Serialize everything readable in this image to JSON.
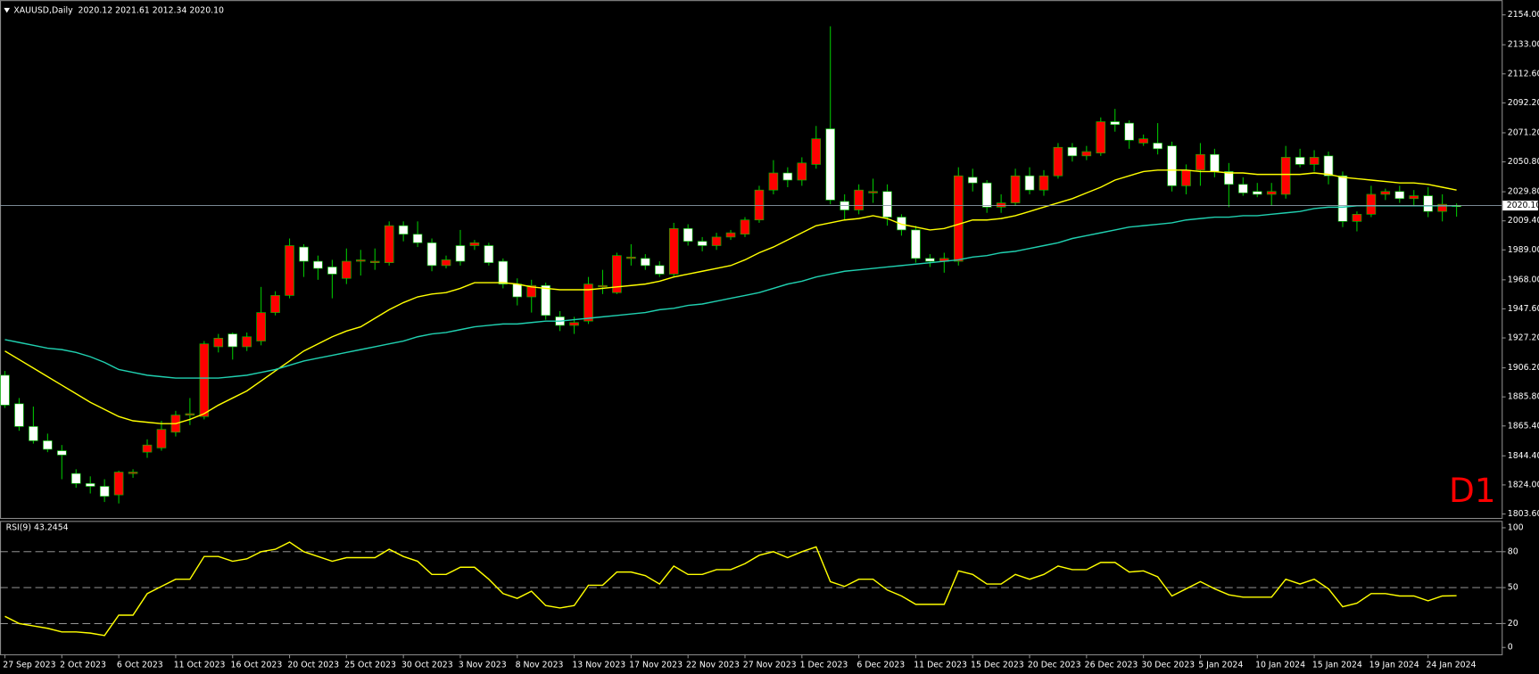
{
  "chart_data": [
    {
      "type": "candlestick",
      "title": "XAUUSD,Daily  2020.12 2021.61 2012.34 2020.10",
      "corner_label": "D1",
      "categories": [
        "27 Sep 2023",
        null,
        null,
        null,
        "2 Oct 2023",
        null,
        null,
        null,
        "6 Oct 2023",
        null,
        null,
        null,
        "11 Oct 2023",
        null,
        null,
        null,
        "16 Oct 2023",
        null,
        null,
        null,
        "20 Oct 2023",
        null,
        null,
        null,
        "25 Oct 2023",
        null,
        null,
        null,
        "30 Oct 2023",
        null,
        null,
        null,
        "3 Nov 2023",
        null,
        null,
        null,
        "8 Nov 2023",
        null,
        null,
        null,
        "13 Nov 2023",
        null,
        null,
        null,
        "17 Nov 2023",
        null,
        null,
        null,
        "22 Nov 2023",
        null,
        null,
        null,
        "27 Nov 2023",
        null,
        null,
        null,
        "1 Dec 2023",
        null,
        null,
        null,
        "6 Dec 2023",
        null,
        null,
        null,
        "11 Dec 2023",
        null,
        null,
        null,
        "15 Dec 2023",
        null,
        null,
        null,
        "20 Dec 2023",
        null,
        null,
        null,
        "26 Dec 2023",
        null,
        null,
        null,
        "30 Dec 2023",
        null,
        null,
        null,
        "5 Jan 2024",
        null,
        null,
        null,
        "10 Jan 2024",
        null,
        null,
        null,
        "15 Jan 2024",
        null,
        null,
        null,
        "19 Jan 2024",
        null,
        null,
        null,
        "24 Jan 2024",
        null,
        null
      ],
      "open": [
        1901,
        1881,
        1865,
        1855,
        1848,
        1832,
        1825,
        1823,
        1817,
        1832,
        1847,
        1850,
        1861,
        1873,
        1872,
        1921,
        1930,
        1921,
        1925,
        1945,
        1957,
        1991,
        1981,
        1977,
        1969,
        1981,
        1980,
        1980,
        2006,
        2000,
        1994,
        1978,
        1992,
        1992,
        1992,
        1981,
        1965,
        1956,
        1964,
        1942,
        1936,
        1939,
        1963,
        1959,
        1983,
        1983,
        1978,
        1972,
        2004,
        1995,
        1992,
        1998,
        2000,
        2010,
        2031,
        2043,
        2038,
        2049,
        2074,
        2023,
        2017,
        2029,
        2030,
        2012,
        2003,
        1983,
        1981,
        1981,
        2040,
        2036,
        2019,
        2022,
        2041,
        2031,
        2041,
        2061,
        2055,
        2057,
        2079,
        2078,
        2064,
        2064,
        2062,
        2034,
        2045,
        2056,
        2044,
        2035,
        2030,
        2028,
        2028,
        2054,
        2049,
        2055,
        2041,
        2009,
        2014,
        2028,
        2030,
        2025,
        2027,
        2016,
        2020.12
      ],
      "high": [
        1904,
        1885,
        1879,
        1860,
        1852,
        1835,
        1830,
        1828,
        1834,
        1835,
        1856,
        1869,
        1876,
        1885,
        1925,
        1930,
        1931,
        1931,
        1963,
        1960,
        1997,
        1993,
        1985,
        1982,
        1990,
        1989,
        1990,
        2009,
        2009,
        2009,
        1997,
        1985,
        2003,
        1996,
        1994,
        1983,
        1969,
        1968,
        1966,
        1946,
        1942,
        1970,
        1975,
        1987,
        1993,
        1986,
        1981,
        2008,
        2007,
        1998,
        2001,
        2003,
        2012,
        2034,
        2052,
        2047,
        2054,
        2076,
        2146,
        2028,
        2035,
        2039,
        2035,
        2014,
        2006,
        1986,
        1987,
        2047,
        2046,
        2038,
        2028,
        2046,
        2047,
        2045,
        2064,
        2064,
        2062,
        2082,
        2088,
        2080,
        2070,
        2078,
        2065,
        2049,
        2064,
        2060,
        2050,
        2040,
        2036,
        2036,
        2062,
        2060,
        2059,
        2058,
        2044,
        2016,
        2034,
        2032,
        2034,
        2031,
        2033,
        2028,
        2021.61
      ],
      "low": [
        1878,
        1862,
        1853,
        1847,
        1828,
        1822,
        1818,
        1812,
        1811,
        1829,
        1843,
        1848,
        1858,
        1866,
        1870,
        1917,
        1912,
        1918,
        1922,
        1943,
        1955,
        1970,
        1968,
        1955,
        1965,
        1971,
        1975,
        1978,
        1995,
        1991,
        1974,
        1976,
        1978,
        1989,
        1978,
        1962,
        1950,
        1945,
        1940,
        1932,
        1930,
        1937,
        1958,
        1958,
        1978,
        1975,
        1970,
        1970,
        1992,
        1988,
        1989,
        1996,
        1998,
        2008,
        2028,
        2033,
        2034,
        2046,
        2021,
        2010,
        2014,
        2022,
        2006,
        1999,
        1980,
        1977,
        1973,
        1978,
        2030,
        2015,
        2015,
        2020,
        2028,
        2027,
        2039,
        2051,
        2052,
        2055,
        2072,
        2060,
        2062,
        2056,
        2030,
        2028,
        2034,
        2040,
        2019,
        2027,
        2026,
        2020,
        2025,
        2047,
        2044,
        2035,
        2005,
        2002,
        2012,
        2024,
        2022,
        2020,
        2012,
        2009,
        2012.34
      ],
      "close": [
        1880,
        1865,
        1855,
        1849,
        1845,
        1825,
        1823,
        1816,
        1833,
        1833,
        1852,
        1863,
        1873,
        1874,
        1923,
        1927,
        1921,
        1928,
        1945,
        1957,
        1992,
        1981,
        1976,
        1972,
        1981,
        1982,
        1981,
        2006,
        2000,
        1994,
        1978,
        1982,
        1981,
        1994,
        1980,
        1965,
        1956,
        1964,
        1943,
        1936,
        1938,
        1965,
        1964,
        1985,
        1984,
        1978,
        1972,
        2004,
        1995,
        1992,
        1998,
        2001,
        2010,
        2031,
        2043,
        2038,
        2050,
        2067,
        2024,
        2017,
        2031,
        2030,
        2012,
        2003,
        1983,
        1981,
        1983,
        2041,
        2036,
        2019,
        2022,
        2041,
        2031,
        2041,
        2061,
        2055,
        2058,
        2079,
        2077,
        2066,
        2067,
        2060,
        2034,
        2045,
        2056,
        2044,
        2035,
        2029,
        2028,
        2030,
        2054,
        2049,
        2054,
        2041,
        2009,
        2014,
        2028,
        2030,
        2025,
        2027,
        2016,
        2021,
        2020.1
      ],
      "up_color": "#ff0000",
      "down_color": "#ffffff",
      "wick_color": "#00c000",
      "overlays": [
        {
          "color": "#ffff00",
          "values": [
            1918,
            1912,
            1906,
            1900,
            1894,
            1888,
            1882,
            1877,
            1872,
            1869,
            1868,
            1867,
            1867,
            1870,
            1874,
            1880,
            1885,
            1890,
            1897,
            1904,
            1911,
            1918,
            1923,
            1928,
            1932,
            1935,
            1941,
            1947,
            1952,
            1956,
            1958,
            1959,
            1962,
            1966,
            1966,
            1966,
            1965,
            1963,
            1962,
            1961,
            1961,
            1961,
            1962,
            1963,
            1964,
            1965,
            1967,
            1970,
            1972,
            1974,
            1976,
            1978,
            1982,
            1987,
            1991,
            1996,
            2001,
            2006,
            2008,
            2010,
            2011,
            2013,
            2011,
            2007,
            2005,
            2003,
            2004,
            2007,
            2010,
            2010,
            2011,
            2013,
            2016,
            2019,
            2022,
            2025,
            2029,
            2033,
            2038,
            2041,
            2044,
            2045,
            2045,
            2045,
            2044,
            2044,
            2043,
            2043,
            2042,
            2042,
            2042,
            2042,
            2043,
            2042,
            2040,
            2039,
            2038,
            2037,
            2036,
            2036,
            2035,
            2033,
            2031
          ]
        },
        {
          "color": "#20d0b0",
          "values": [
            1926,
            1924,
            1922,
            1920,
            1919,
            1917,
            1914,
            1910,
            1905,
            1903,
            1901,
            1900,
            1899,
            1899,
            1899,
            1899,
            1900,
            1901,
            1903,
            1905,
            1908,
            1911,
            1913,
            1915,
            1917,
            1919,
            1921,
            1923,
            1925,
            1928,
            1930,
            1931,
            1933,
            1935,
            1936,
            1937,
            1937,
            1938,
            1939,
            1939,
            1940,
            1941,
            1942,
            1943,
            1944,
            1945,
            1947,
            1948,
            1950,
            1951,
            1953,
            1955,
            1957,
            1959,
            1962,
            1965,
            1967,
            1970,
            1972,
            1974,
            1975,
            1976,
            1977,
            1978,
            1979,
            1980,
            1981,
            1982,
            1984,
            1985,
            1987,
            1988,
            1990,
            1992,
            1994,
            1997,
            1999,
            2001,
            2003,
            2005,
            2006,
            2007,
            2008,
            2010,
            2011,
            2012,
            2012,
            2013,
            2013,
            2014,
            2015,
            2016,
            2018,
            2019,
            2019,
            2020,
            2020,
            2020,
            2020,
            2020,
            2020,
            2020,
            2020
          ]
        }
      ],
      "current_price": {
        "value": 2020.1,
        "label": "2020.10"
      },
      "ylim": [
        1800.8,
        2162.3
      ],
      "yticks": [
        {
          "value": 2154.0,
          "label": "2154.00"
        },
        {
          "value": 2133.0,
          "label": "2133.00"
        },
        {
          "value": 2112.6,
          "label": "2112.60"
        },
        {
          "value": 2092.2,
          "label": "2092.20"
        },
        {
          "value": 2071.2,
          "label": "2071.20"
        },
        {
          "value": 2050.8,
          "label": "2050.80"
        },
        {
          "value": 2029.8,
          "label": "2029.80"
        },
        {
          "value": 2009.4,
          "label": "2009.40"
        },
        {
          "value": 1989.0,
          "label": "1989.00"
        },
        {
          "value": 1968.0,
          "label": "1968.00"
        },
        {
          "value": 1947.6,
          "label": "1947.60"
        },
        {
          "value": 1927.2,
          "label": "1927.20"
        },
        {
          "value": 1906.2,
          "label": "1906.20"
        },
        {
          "value": 1885.8,
          "label": "1885.80"
        },
        {
          "value": 1865.4,
          "label": "1865.40"
        },
        {
          "value": 1844.4,
          "label": "1844.40"
        },
        {
          "value": 1824.0,
          "label": "1824.00"
        },
        {
          "value": 1803.6,
          "label": "1803.60"
        }
      ]
    },
    {
      "type": "line",
      "title": "RSI(9) 43.2454",
      "color": "#ffff00",
      "values": [
        26,
        20,
        18,
        16,
        13,
        13,
        12,
        10,
        27,
        27,
        45,
        51,
        57,
        57,
        76,
        76,
        72,
        74,
        80,
        82,
        88,
        80,
        76,
        72,
        75,
        75,
        75,
        82,
        76,
        72,
        61,
        61,
        67,
        67,
        57,
        45,
        41,
        47,
        35,
        33,
        35,
        52,
        52,
        63,
        63,
        60,
        53,
        68,
        61,
        61,
        65,
        65,
        70,
        77,
        80,
        75,
        80,
        84,
        55,
        51,
        57,
        57,
        48,
        43,
        36,
        36,
        36,
        64,
        61,
        53,
        53,
        61,
        57,
        61,
        68,
        65,
        65,
        71,
        71,
        63,
        64,
        59,
        43,
        49,
        55,
        49,
        44,
        42,
        42,
        42,
        57,
        53,
        57,
        49,
        34,
        37,
        45,
        45,
        43,
        43,
        39,
        43,
        43.2454
      ],
      "levels": [
        80,
        50,
        20
      ],
      "ylim": [
        -5.7,
        104.9
      ],
      "yticks": [
        100,
        80,
        50,
        20,
        0
      ]
    }
  ]
}
